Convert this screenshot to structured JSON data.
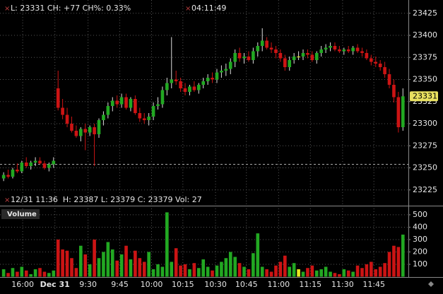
{
  "chart_data": {
    "type": "candlestick",
    "quote": "L: 23331 CH: +77 CH%: 0.33%",
    "clock": "04:11:49",
    "info": "12/31 11:36  H: 23387 L: 23379 C: 23379 Vol: 27",
    "last_price": 23331,
    "reference_line": 23254,
    "up_color": "#22a822",
    "down_color": "#cc1414",
    "flat_color": "#e8e820",
    "grid": true,
    "xlim": [
      -0.8,
      89.2
    ],
    "xticks": [
      {
        "value": 4.2,
        "label": "16:00"
      },
      {
        "value": 11.3,
        "label": "Dec 31"
      },
      {
        "value": 18.6,
        "label": "9:30"
      },
      {
        "value": 25.6,
        "label": "9:45"
      },
      {
        "value": 32.6,
        "label": "10:00"
      },
      {
        "value": 39.5,
        "label": "10:15"
      },
      {
        "value": 46.7,
        "label": "10:30"
      },
      {
        "value": 53.5,
        "label": "10:45"
      },
      {
        "value": 60.6,
        "label": "11:00"
      },
      {
        "value": 67.6,
        "label": "11:15"
      },
      {
        "value": 74.7,
        "label": "11:30"
      },
      {
        "value": 81.6,
        "label": "11:45"
      }
    ],
    "ylim": [
      23208,
      23440
    ],
    "yticks": [
      23225,
      23250,
      23275,
      23300,
      23325,
      23350,
      23375,
      23400,
      23425
    ],
    "open": [
      23238,
      23242,
      23240,
      23248,
      23246,
      23256,
      23252,
      23256,
      23258,
      23255,
      23250,
      23254,
      23340,
      23318,
      23310,
      23300,
      23292,
      23286,
      23294,
      23290,
      23296,
      23288,
      23304,
      23310,
      23320,
      23326,
      23322,
      23330,
      23318,
      23328,
      23312,
      23306,
      23304,
      23308,
      23320,
      23322,
      23338,
      23346,
      23350,
      23348,
      23340,
      23336,
      23342,
      23338,
      23344,
      23348,
      23352,
      23350,
      23358,
      23360,
      23362,
      23370,
      23380,
      23374,
      23376,
      23372,
      23382,
      23388,
      23394,
      23386,
      23384,
      23380,
      23374,
      23364,
      23372,
      23376,
      23376,
      23380,
      23378,
      23372,
      23380,
      23384,
      23386,
      23388,
      23384,
      23382,
      23384,
      23382,
      23386,
      23382,
      23380,
      23374,
      23370,
      23368,
      23364,
      23356,
      23344,
      23330,
      23296
    ],
    "high": [
      23245,
      23248,
      23250,
      23255,
      23258,
      23262,
      23258,
      23262,
      23262,
      23258,
      23256,
      23262,
      23360,
      23328,
      23318,
      23308,
      23298,
      23296,
      23300,
      23298,
      23300,
      23306,
      23314,
      23324,
      23330,
      23332,
      23334,
      23334,
      23330,
      23332,
      23318,
      23312,
      23312,
      23324,
      23330,
      23342,
      23352,
      23398,
      23360,
      23352,
      23346,
      23344,
      23348,
      23346,
      23352,
      23356,
      23358,
      23362,
      23366,
      23368,
      23374,
      23384,
      23386,
      23380,
      23382,
      23386,
      23392,
      23408,
      23398,
      23392,
      23388,
      23384,
      23378,
      23376,
      23380,
      23382,
      23384,
      23384,
      23382,
      23382,
      23388,
      23390,
      23392,
      23392,
      23388,
      23386,
      23388,
      23388,
      23390,
      23386,
      23384,
      23378,
      23376,
      23372,
      23370,
      23362,
      23350,
      23336,
      23340
    ],
    "low": [
      23235,
      23238,
      23238,
      23244,
      23244,
      23250,
      23248,
      23252,
      23254,
      23248,
      23246,
      23250,
      23315,
      23305,
      23296,
      23290,
      23284,
      23280,
      23270,
      23286,
      23252,
      23284,
      23298,
      23306,
      23314,
      23318,
      23318,
      23316,
      23314,
      23310,
      23302,
      23300,
      23298,
      23304,
      23316,
      23318,
      23332,
      23340,
      23344,
      23336,
      23332,
      23332,
      23336,
      23334,
      23340,
      23344,
      23346,
      23346,
      23352,
      23354,
      23356,
      23364,
      23370,
      23368,
      23370,
      23368,
      23376,
      23382,
      23384,
      23380,
      23374,
      23370,
      23360,
      23360,
      23368,
      23372,
      23372,
      23374,
      23370,
      23368,
      23376,
      23380,
      23382,
      23382,
      23380,
      23378,
      23380,
      23378,
      23380,
      23376,
      23372,
      23366,
      23364,
      23360,
      23352,
      23340,
      23324,
      23290,
      23292
    ],
    "close": [
      23242,
      23240,
      23248,
      23246,
      23256,
      23252,
      23256,
      23258,
      23255,
      23250,
      23254,
      23258,
      23318,
      23310,
      23300,
      23292,
      23286,
      23294,
      23290,
      23296,
      23288,
      23304,
      23310,
      23320,
      23326,
      23322,
      23330,
      23318,
      23328,
      23312,
      23306,
      23304,
      23308,
      23320,
      23322,
      23338,
      23346,
      23350,
      23348,
      23340,
      23336,
      23342,
      23338,
      23344,
      23348,
      23352,
      23350,
      23358,
      23360,
      23362,
      23370,
      23380,
      23374,
      23376,
      23372,
      23382,
      23388,
      23394,
      23386,
      23384,
      23380,
      23374,
      23364,
      23372,
      23376,
      23376,
      23380,
      23378,
      23372,
      23380,
      23384,
      23386,
      23388,
      23384,
      23382,
      23384,
      23382,
      23386,
      23382,
      23380,
      23374,
      23370,
      23368,
      23364,
      23356,
      23344,
      23330,
      23296,
      23331
    ],
    "volume": {
      "title": "Volume",
      "ylim": [
        0,
        551
      ],
      "yticks": [
        100,
        200,
        300,
        400,
        500
      ],
      "values": [
        60,
        30,
        70,
        40,
        80,
        50,
        20,
        60,
        70,
        40,
        30,
        50,
        300,
        220,
        210,
        150,
        70,
        250,
        180,
        100,
        300,
        150,
        200,
        280,
        220,
        130,
        180,
        250,
        140,
        210,
        150,
        120,
        200,
        60,
        100,
        80,
        520,
        120,
        230,
        90,
        100,
        60,
        110,
        70,
        140,
        80,
        50,
        90,
        120,
        150,
        200,
        160,
        110,
        80,
        60,
        190,
        350,
        80,
        60,
        40,
        90,
        120,
        170,
        80,
        110,
        60,
        40,
        70,
        90,
        50,
        60,
        80,
        40,
        30,
        20,
        60,
        50,
        40,
        90,
        70,
        100,
        120,
        60,
        80,
        110,
        200,
        250,
        240,
        340
      ]
    }
  }
}
